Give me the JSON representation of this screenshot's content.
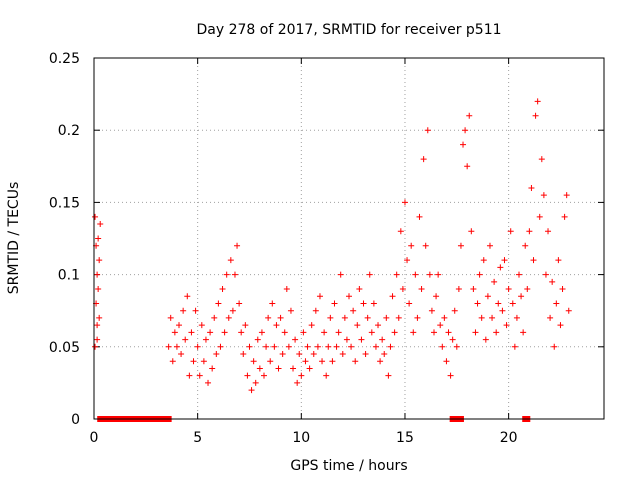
{
  "chart_data": {
    "type": "scatter",
    "title": "Day 278 of 2017, SRMTID for receiver p511",
    "xlabel": "GPS time / hours",
    "ylabel": "SRMTID / TECUs",
    "xlim": [
      0,
      24.6
    ],
    "ylim": [
      0,
      0.25
    ],
    "xticks": [
      0,
      5,
      10,
      15,
      20
    ],
    "xtick_labels": [
      "0",
      "5",
      "10",
      "15",
      "20"
    ],
    "yticks": [
      0,
      0.05,
      0.1,
      0.15,
      0.2,
      0.25
    ],
    "ytick_labels": [
      "0",
      "0.05",
      "0.1",
      "0.15",
      "0.2",
      "0.25"
    ],
    "grid": true,
    "marker": "+",
    "color": "#ff0000",
    "series": [
      {
        "name": "SRMTID",
        "points": [
          [
            0.05,
            0.14
          ],
          [
            0.1,
            0.12
          ],
          [
            0.1,
            0.08
          ],
          [
            0.15,
            0.1
          ],
          [
            0.15,
            0.065
          ],
          [
            0.2,
            0.125
          ],
          [
            0.2,
            0.09
          ],
          [
            0.25,
            0.11
          ],
          [
            0.25,
            0.07
          ],
          [
            0.3,
            0.135
          ],
          [
            0.05,
            0.05
          ],
          [
            0.15,
            0.055
          ],
          [
            3.6,
            0.05
          ],
          [
            3.7,
            0.07
          ],
          [
            3.8,
            0.04
          ],
          [
            3.9,
            0.06
          ],
          [
            4.0,
            0.05
          ],
          [
            4.1,
            0.065
          ],
          [
            4.2,
            0.045
          ],
          [
            4.3,
            0.075
          ],
          [
            4.4,
            0.055
          ],
          [
            4.5,
            0.085
          ],
          [
            4.6,
            0.03
          ],
          [
            4.7,
            0.06
          ],
          [
            4.8,
            0.04
          ],
          [
            4.9,
            0.075
          ],
          [
            5.0,
            0.05
          ],
          [
            5.1,
            0.03
          ],
          [
            5.2,
            0.065
          ],
          [
            5.3,
            0.04
          ],
          [
            5.4,
            0.055
          ],
          [
            5.5,
            0.025
          ],
          [
            5.6,
            0.06
          ],
          [
            5.7,
            0.035
          ],
          [
            5.8,
            0.07
          ],
          [
            5.9,
            0.045
          ],
          [
            6.0,
            0.08
          ],
          [
            6.1,
            0.05
          ],
          [
            6.2,
            0.09
          ],
          [
            6.3,
            0.06
          ],
          [
            6.4,
            0.1
          ],
          [
            6.5,
            0.07
          ],
          [
            6.6,
            0.11
          ],
          [
            6.7,
            0.075
          ],
          [
            6.8,
            0.1
          ],
          [
            6.9,
            0.12
          ],
          [
            7.0,
            0.08
          ],
          [
            7.1,
            0.06
          ],
          [
            7.2,
            0.045
          ],
          [
            7.3,
            0.065
          ],
          [
            7.4,
            0.03
          ],
          [
            7.5,
            0.05
          ],
          [
            7.6,
            0.02
          ],
          [
            7.7,
            0.04
          ],
          [
            7.8,
            0.025
          ],
          [
            7.9,
            0.055
          ],
          [
            8.0,
            0.035
          ],
          [
            8.1,
            0.06
          ],
          [
            8.2,
            0.03
          ],
          [
            8.3,
            0.05
          ],
          [
            8.4,
            0.07
          ],
          [
            8.5,
            0.04
          ],
          [
            8.6,
            0.08
          ],
          [
            8.7,
            0.05
          ],
          [
            8.8,
            0.065
          ],
          [
            8.9,
            0.035
          ],
          [
            9.0,
            0.07
          ],
          [
            9.1,
            0.045
          ],
          [
            9.2,
            0.06
          ],
          [
            9.3,
            0.09
          ],
          [
            9.4,
            0.05
          ],
          [
            9.5,
            0.075
          ],
          [
            9.6,
            0.035
          ],
          [
            9.7,
            0.055
          ],
          [
            9.8,
            0.025
          ],
          [
            9.9,
            0.045
          ],
          [
            10.0,
            0.03
          ],
          [
            10.1,
            0.06
          ],
          [
            10.2,
            0.04
          ],
          [
            10.3,
            0.05
          ],
          [
            10.4,
            0.035
          ],
          [
            10.5,
            0.065
          ],
          [
            10.6,
            0.045
          ],
          [
            10.7,
            0.075
          ],
          [
            10.8,
            0.05
          ],
          [
            10.9,
            0.085
          ],
          [
            11.0,
            0.04
          ],
          [
            11.1,
            0.06
          ],
          [
            11.2,
            0.03
          ],
          [
            11.3,
            0.05
          ],
          [
            11.4,
            0.07
          ],
          [
            11.5,
            0.04
          ],
          [
            11.6,
            0.08
          ],
          [
            11.7,
            0.05
          ],
          [
            11.8,
            0.06
          ],
          [
            11.9,
            0.1
          ],
          [
            12.0,
            0.045
          ],
          [
            12.1,
            0.07
          ],
          [
            12.2,
            0.055
          ],
          [
            12.3,
            0.085
          ],
          [
            12.4,
            0.05
          ],
          [
            12.5,
            0.075
          ],
          [
            12.6,
            0.04
          ],
          [
            12.7,
            0.065
          ],
          [
            12.8,
            0.09
          ],
          [
            12.9,
            0.055
          ],
          [
            13.0,
            0.08
          ],
          [
            13.1,
            0.045
          ],
          [
            13.2,
            0.07
          ],
          [
            13.3,
            0.1
          ],
          [
            13.4,
            0.06
          ],
          [
            13.5,
            0.08
          ],
          [
            13.6,
            0.05
          ],
          [
            13.7,
            0.065
          ],
          [
            13.8,
            0.04
          ],
          [
            13.9,
            0.055
          ],
          [
            14.0,
            0.045
          ],
          [
            14.1,
            0.07
          ],
          [
            14.2,
            0.03
          ],
          [
            14.3,
            0.05
          ],
          [
            14.4,
            0.085
          ],
          [
            14.5,
            0.06
          ],
          [
            14.6,
            0.1
          ],
          [
            14.7,
            0.07
          ],
          [
            14.8,
            0.13
          ],
          [
            14.9,
            0.09
          ],
          [
            15.0,
            0.15
          ],
          [
            15.1,
            0.11
          ],
          [
            15.2,
            0.08
          ],
          [
            15.3,
            0.12
          ],
          [
            15.4,
            0.06
          ],
          [
            15.5,
            0.1
          ],
          [
            15.6,
            0.07
          ],
          [
            15.7,
            0.14
          ],
          [
            15.8,
            0.09
          ],
          [
            15.9,
            0.18
          ],
          [
            16.0,
            0.12
          ],
          [
            16.1,
            0.2
          ],
          [
            16.2,
            0.1
          ],
          [
            16.3,
            0.075
          ],
          [
            16.4,
            0.06
          ],
          [
            16.5,
            0.085
          ],
          [
            16.6,
            0.1
          ],
          [
            16.7,
            0.065
          ],
          [
            16.8,
            0.05
          ],
          [
            16.9,
            0.07
          ],
          [
            17.0,
            0.04
          ],
          [
            17.1,
            0.06
          ],
          [
            17.2,
            0.03
          ],
          [
            17.3,
            0.055
          ],
          [
            17.4,
            0.075
          ],
          [
            17.5,
            0.05
          ],
          [
            17.6,
            0.09
          ],
          [
            17.7,
            0.12
          ],
          [
            17.8,
            0.19
          ],
          [
            17.9,
            0.2
          ],
          [
            18.0,
            0.175
          ],
          [
            18.1,
            0.21
          ],
          [
            18.2,
            0.13
          ],
          [
            18.3,
            0.09
          ],
          [
            18.4,
            0.06
          ],
          [
            18.5,
            0.08
          ],
          [
            18.6,
            0.1
          ],
          [
            18.7,
            0.07
          ],
          [
            18.8,
            0.11
          ],
          [
            18.9,
            0.055
          ],
          [
            19.0,
            0.085
          ],
          [
            19.1,
            0.12
          ],
          [
            19.2,
            0.07
          ],
          [
            19.3,
            0.095
          ],
          [
            19.4,
            0.06
          ],
          [
            19.5,
            0.08
          ],
          [
            19.6,
            0.105
          ],
          [
            19.7,
            0.075
          ],
          [
            19.8,
            0.11
          ],
          [
            19.9,
            0.065
          ],
          [
            20.0,
            0.09
          ],
          [
            20.1,
            0.13
          ],
          [
            20.2,
            0.08
          ],
          [
            20.3,
            0.05
          ],
          [
            20.4,
            0.07
          ],
          [
            20.5,
            0.1
          ],
          [
            20.6,
            0.085
          ],
          [
            20.7,
            0.06
          ],
          [
            20.8,
            0.12
          ],
          [
            20.9,
            0.09
          ],
          [
            21.0,
            0.13
          ],
          [
            21.1,
            0.16
          ],
          [
            21.2,
            0.11
          ],
          [
            21.3,
            0.21
          ],
          [
            21.4,
            0.22
          ],
          [
            21.5,
            0.14
          ],
          [
            21.6,
            0.18
          ],
          [
            21.7,
            0.155
          ],
          [
            21.8,
            0.1
          ],
          [
            21.9,
            0.13
          ],
          [
            22.0,
            0.07
          ],
          [
            22.1,
            0.095
          ],
          [
            22.2,
            0.05
          ],
          [
            22.3,
            0.08
          ],
          [
            22.4,
            0.11
          ],
          [
            22.5,
            0.065
          ],
          [
            22.6,
            0.09
          ],
          [
            22.7,
            0.14
          ],
          [
            22.8,
            0.155
          ],
          [
            22.9,
            0.075
          ]
        ]
      }
    ],
    "baseline_markers": [
      [
        0.3,
        3.6
      ],
      [
        17.3,
        17.4
      ],
      [
        17.6,
        17.7
      ],
      [
        20.8,
        20.9
      ]
    ]
  }
}
